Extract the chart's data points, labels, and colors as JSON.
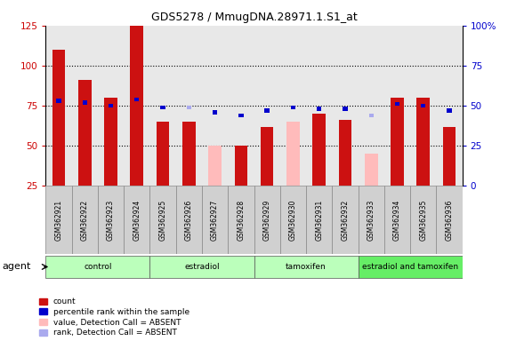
{
  "title": "GDS5278 / MmugDNA.28971.1.S1_at",
  "samples": [
    "GSM362921",
    "GSM362922",
    "GSM362923",
    "GSM362924",
    "GSM362925",
    "GSM362926",
    "GSM362927",
    "GSM362928",
    "GSM362929",
    "GSM362930",
    "GSM362931",
    "GSM362932",
    "GSM362933",
    "GSM362934",
    "GSM362935",
    "GSM362936"
  ],
  "count_values": [
    110,
    91,
    80,
    125,
    65,
    65,
    50,
    50,
    62,
    65,
    70,
    66,
    null,
    80,
    80,
    62
  ],
  "count_absent": [
    false,
    false,
    false,
    false,
    false,
    false,
    true,
    false,
    false,
    true,
    false,
    false,
    true,
    false,
    false,
    false
  ],
  "rank_values": [
    53,
    52,
    50,
    54,
    49,
    49,
    46,
    44,
    47,
    49,
    48,
    48,
    44,
    51,
    50,
    47
  ],
  "rank_absent": [
    false,
    false,
    false,
    false,
    false,
    true,
    false,
    false,
    false,
    false,
    false,
    false,
    true,
    false,
    false,
    false
  ],
  "groups": [
    {
      "label": "control",
      "start": 0,
      "end": 3,
      "color": "#bbffbb"
    },
    {
      "label": "estradiol",
      "start": 4,
      "end": 7,
      "color": "#bbffbb"
    },
    {
      "label": "tamoxifen",
      "start": 8,
      "end": 11,
      "color": "#bbffbb"
    },
    {
      "label": "estradiol and tamoxifen",
      "start": 12,
      "end": 15,
      "color": "#66ee66"
    }
  ],
  "ylim_left": [
    25,
    125
  ],
  "ylim_right": [
    0,
    100
  ],
  "bar_color_present": "#cc1111",
  "bar_color_absent": "#ffbbbb",
  "rank_color_present": "#0000cc",
  "rank_color_absent": "#aaaaee",
  "col_bg_color": "#cccccc",
  "background_color": "#ffffff",
  "tick_label_color_left": "#cc0000",
  "tick_label_color_right": "#0000cc"
}
